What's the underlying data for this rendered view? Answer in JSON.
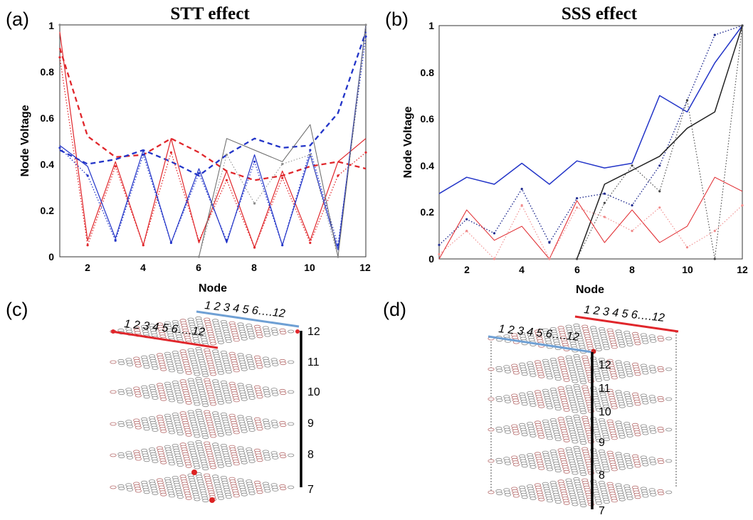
{
  "chart_data": [
    {
      "type": "line",
      "panel_label": "(a)",
      "title": "STT effect",
      "xlabel": "Node",
      "ylabel": "Node Voltage",
      "xlim": [
        1,
        12
      ],
      "ylim": [
        0,
        1
      ],
      "xticks": [
        "2",
        "4",
        "6",
        "8",
        "10",
        "12"
      ],
      "yticks": [
        "0",
        "0.2",
        "0.4",
        "0.6",
        "0.8",
        "1"
      ],
      "x": [
        1,
        2,
        3,
        4,
        5,
        6,
        7,
        8,
        9,
        10,
        11,
        12
      ],
      "series": [
        {
          "color": "#e0262b",
          "style": "dashed",
          "width": 2.3,
          "values": [
            0.9,
            0.52,
            0.43,
            0.44,
            0.51,
            0.45,
            0.37,
            0.33,
            0.35,
            0.39,
            0.41,
            0.38
          ]
        },
        {
          "color": "#2234c8",
          "style": "dashed",
          "width": 2.3,
          "values": [
            0.46,
            0.4,
            0.42,
            0.46,
            0.41,
            0.35,
            0.44,
            0.51,
            0.47,
            0.48,
            0.62,
            0.97
          ]
        },
        {
          "color": "#e0262b",
          "style": "solid",
          "width": 1.2,
          "values": [
            0.97,
            0.07,
            0.41,
            0.05,
            0.51,
            0.06,
            0.37,
            0.04,
            0.37,
            0.07,
            0.41,
            0.51
          ]
        },
        {
          "color": "#e0262b",
          "style": "dotted",
          "width": 1.3,
          "values": [
            0.86,
            0.05,
            0.39,
            0.05,
            0.45,
            0.07,
            0.33,
            0.04,
            0.34,
            0.06,
            0.35,
            0.45
          ]
        },
        {
          "color": "#2234c8",
          "style": "solid",
          "width": 1.2,
          "values": [
            0.48,
            0.39,
            0.08,
            0.46,
            0.06,
            0.38,
            0.06,
            0.44,
            0.05,
            0.44,
            0.03,
            1.0
          ]
        },
        {
          "color": "#2234c8",
          "style": "dotted",
          "width": 1.3,
          "values": [
            0.47,
            0.35,
            0.07,
            0.44,
            0.06,
            0.36,
            0.07,
            0.41,
            0.05,
            0.46,
            0.05,
            0.95
          ]
        },
        {
          "color": "#666666",
          "style": "solid",
          "width": 1.0,
          "values": [
            null,
            null,
            null,
            null,
            null,
            0.0,
            0.51,
            0.46,
            0.41,
            0.57,
            0.0,
            1.0
          ]
        },
        {
          "color": "#888888",
          "style": "dotted",
          "width": 1.0,
          "values": [
            1.0,
            null,
            null,
            null,
            null,
            0.0,
            0.44,
            0.23,
            0.4,
            0.44,
            0.0,
            1.0
          ]
        }
      ]
    },
    {
      "type": "line",
      "panel_label": "(b)",
      "title": "SSS effect",
      "xlabel": "Node",
      "ylabel": "Node Voltage",
      "xlim": [
        1,
        12
      ],
      "ylim": [
        0,
        1
      ],
      "xticks": [
        "2",
        "4",
        "6",
        "8",
        "10",
        "12"
      ],
      "yticks": [
        "0",
        "0.2",
        "0.4",
        "0.6",
        "0.8",
        "1"
      ],
      "x": [
        1,
        2,
        3,
        4,
        5,
        6,
        7,
        8,
        9,
        10,
        11,
        12
      ],
      "series": [
        {
          "color": "#2234c8",
          "style": "solid",
          "width": 1.5,
          "values": [
            0.28,
            0.35,
            0.32,
            0.41,
            0.32,
            0.42,
            0.39,
            0.41,
            0.7,
            0.63,
            0.84,
            1.0
          ]
        },
        {
          "color": "#1f2a8f",
          "style": "dotted",
          "width": 1.4,
          "values": [
            0.06,
            0.17,
            0.11,
            0.3,
            0.07,
            0.26,
            0.28,
            0.23,
            0.4,
            0.68,
            0.96,
            1.0
          ]
        },
        {
          "color": "#222222",
          "style": "solid",
          "width": 1.5,
          "values": [
            null,
            null,
            null,
            null,
            null,
            0.0,
            0.32,
            0.38,
            0.44,
            0.56,
            0.63,
            1.0
          ]
        },
        {
          "color": "#444444",
          "style": "dotted",
          "width": 1.1,
          "values": [
            null,
            null,
            null,
            null,
            null,
            0.0,
            0.24,
            0.4,
            0.29,
            0.68,
            0.0,
            1.0
          ]
        },
        {
          "color": "#e0262b",
          "style": "solid",
          "width": 1.0,
          "values": [
            0.0,
            0.21,
            0.08,
            0.14,
            0.0,
            0.25,
            0.07,
            0.21,
            0.07,
            0.14,
            0.35,
            0.29
          ]
        },
        {
          "color": "#f08a8a",
          "style": "dotted",
          "width": 1.1,
          "values": [
            0.02,
            0.12,
            0.0,
            0.23,
            0.0,
            0.22,
            0.18,
            0.12,
            0.22,
            0.05,
            0.12,
            0.23
          ]
        }
      ]
    }
  ],
  "diagrams": [
    {
      "panel_label": "(c)",
      "top_label": "1 2 3 4 5 6….12",
      "front_label": "1 2 3 4 5 6….12",
      "levels": [
        "12",
        "11",
        "10",
        "9",
        "8",
        "7"
      ],
      "top_line_color": "#6fa0d4",
      "front_line_color": "#e0262b",
      "column_color": "#000000"
    },
    {
      "panel_label": "(d)",
      "top_label": "1 2 3 4 5 6….12",
      "front_label": "1 2 3 4 5 6….12",
      "levels": [
        "12",
        "11",
        "10",
        "9",
        "8",
        "7"
      ],
      "top_line_color": "#e0262b",
      "front_line_color": "#6fa0d4",
      "column_color": "#000000"
    }
  ]
}
